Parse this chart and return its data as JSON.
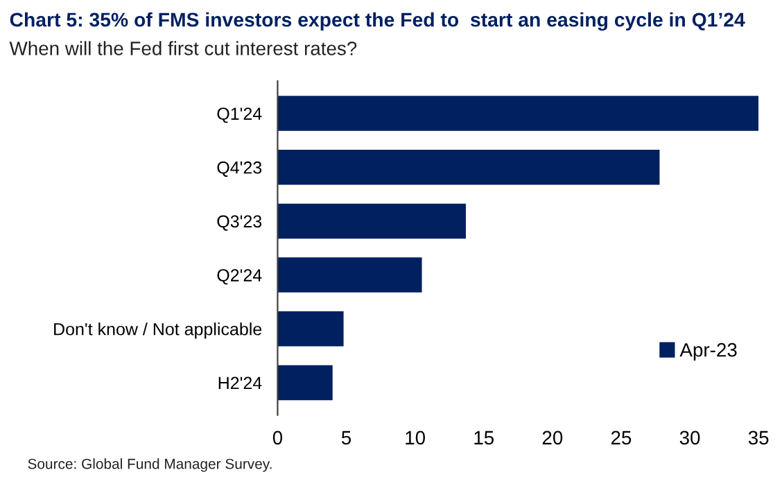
{
  "chart_data": {
    "type": "bar",
    "orientation": "horizontal",
    "title": "Chart 5: 35% of FMS investors expect the Fed to  start an easing cycle in Q1’24",
    "subtitle": "When will the Fed first cut interest rates?",
    "categories": [
      "Q1'24",
      "Q4'23",
      "Q3'23",
      "Q2'24",
      "Don't know / Not applicable",
      "H2'24"
    ],
    "series": [
      {
        "name": "Apr-23",
        "color": "#002060",
        "values": [
          35,
          27.8,
          13.7,
          10.5,
          4.8,
          4.0
        ]
      }
    ],
    "xlim": [
      0,
      35
    ],
    "xticks": [
      0,
      5,
      10,
      15,
      20,
      25,
      30,
      35
    ],
    "grid": false,
    "legend": "bottom right",
    "annotations": [
      "Source: Global Fund Manager Survey."
    ]
  }
}
